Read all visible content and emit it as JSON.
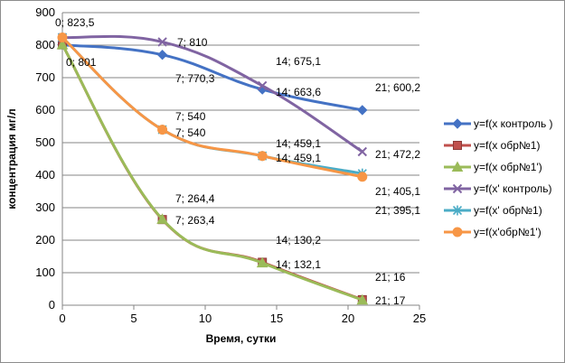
{
  "chart_data": {
    "type": "line",
    "xlabel": "Время, сутки",
    "ylabel": "концентрация мг/л",
    "xlim": [
      0,
      25
    ],
    "ylim": [
      0,
      900
    ],
    "xticks": [
      "0",
      "5",
      "10",
      "15",
      "20",
      "25"
    ],
    "yticks": [
      "0",
      "100",
      "200",
      "300",
      "400",
      "500",
      "600",
      "700",
      "800",
      "900"
    ],
    "grid": true,
    "legend_position": "right",
    "x": [
      0,
      7,
      14,
      21
    ],
    "series": [
      {
        "name": "y=f(x контроль )",
        "values": [
          801,
          770.3,
          663.6,
          600.2
        ],
        "color": "#4472C4",
        "marker": "diamond"
      },
      {
        "name": "y=f(x обр№1)",
        "values": [
          801,
          263.4,
          132.1,
          17
        ],
        "color": "#C0504D",
        "marker": "square"
      },
      {
        "name": "y=f(x обр№1')",
        "values": [
          801,
          264.4,
          130.2,
          16
        ],
        "color": "#9BBB59",
        "marker": "triangle"
      },
      {
        "name": "y=f(x' контроль)",
        "values": [
          823.5,
          810,
          675.1,
          472.2
        ],
        "color": "#8064A2",
        "marker": "x"
      },
      {
        "name": "y=f(x' обр№1)",
        "values": [
          823.5,
          540,
          459.1,
          405.1
        ],
        "color": "#4BACC6",
        "marker": "star"
      },
      {
        "name": "y=f(x'обр№1')",
        "values": [
          823.5,
          540,
          459.1,
          395.1
        ],
        "color": "#F79646",
        "marker": "circle"
      }
    ],
    "data_labels": [
      {
        "text": "0; 823,5"
      },
      {
        "text": "0; 801"
      },
      {
        "text": "7; 810"
      },
      {
        "text": "7; 770,3"
      },
      {
        "text": "7; 540"
      },
      {
        "text": "7; 540"
      },
      {
        "text": "7; 264,4"
      },
      {
        "text": "7; 263,4"
      },
      {
        "text": "14; 675,1"
      },
      {
        "text": "14; 663,6"
      },
      {
        "text": "14; 459,1"
      },
      {
        "text": "14; 459,1"
      },
      {
        "text": "14; 130,2"
      },
      {
        "text": "14; 132,1"
      },
      {
        "text": "21; 600,2"
      },
      {
        "text": "21; 472,2"
      },
      {
        "text": "21; 395,1"
      },
      {
        "text": "21; 405,1"
      },
      {
        "text": "21; 16"
      },
      {
        "text": "21; 17"
      }
    ]
  }
}
